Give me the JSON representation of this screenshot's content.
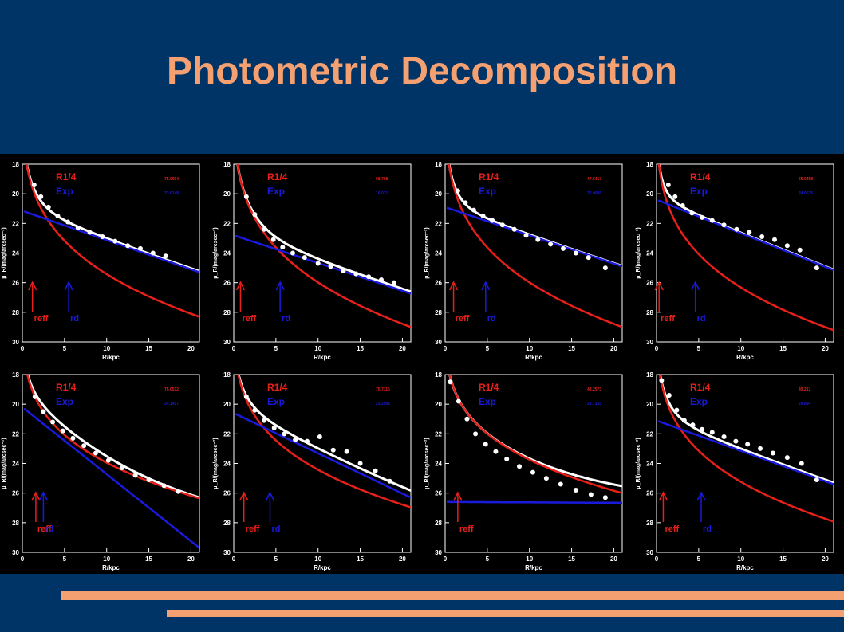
{
  "title": "Photometric Decomposition",
  "chart_data": [
    {
      "type": "line",
      "r_eff": 1.2,
      "r_d": 5.5,
      "bulge": {
        "mu_e": 19.6,
        "r_e": 1.2
      },
      "disk": {
        "mu_0": 21.15,
        "h": 5.5
      },
      "value_bulge": "75.0094",
      "value_disk": "23.0148",
      "data_points": [
        [
          1.4,
          19.4
        ],
        [
          2.2,
          20.2
        ],
        [
          3.1,
          20.9
        ],
        [
          4.2,
          21.5
        ],
        [
          5.4,
          21.9
        ],
        [
          6.6,
          22.3
        ],
        [
          8,
          22.6
        ],
        [
          9.5,
          22.9
        ],
        [
          11,
          23.2
        ],
        [
          12.5,
          23.5
        ],
        [
          14,
          23.7
        ],
        [
          15.5,
          24.0
        ],
        [
          17,
          24.2
        ]
      ]
    },
    {
      "type": "line",
      "r_eff": 0.8,
      "r_d": 5.5,
      "bulge": {
        "mu_e": 19.5,
        "r_e": 1.0
      },
      "disk": {
        "mu_0": 22.8,
        "h": 5.8
      },
      "value_bulge": "68.708",
      "value_disk": "16.031",
      "data_points": [
        [
          1.5,
          20.2
        ],
        [
          2.5,
          21.4
        ],
        [
          3.6,
          22.4
        ],
        [
          4.7,
          23.1
        ],
        [
          5.8,
          23.6
        ],
        [
          7,
          24.0
        ],
        [
          8.4,
          24.3
        ],
        [
          10,
          24.7
        ],
        [
          11.5,
          24.9
        ],
        [
          13,
          25.2
        ],
        [
          14.5,
          25.4
        ],
        [
          16,
          25.6
        ],
        [
          17.5,
          25.8
        ],
        [
          19,
          26.0
        ]
      ]
    },
    {
      "type": "line",
      "r_eff": 1.0,
      "r_d": 4.8,
      "bulge": {
        "mu_e": 19.5,
        "r_e": 1.0
      },
      "disk": {
        "mu_0": 20.9,
        "h": 5.7
      },
      "value_bulge": "47.5417",
      "value_disk": "22.0085",
      "data_points": [
        [
          1.5,
          19.8
        ],
        [
          2.4,
          20.6
        ],
        [
          3.4,
          21.1
        ],
        [
          4.5,
          21.5
        ],
        [
          5.6,
          21.8
        ],
        [
          6.8,
          22.1
        ],
        [
          8.2,
          22.4
        ],
        [
          9.6,
          22.8
        ],
        [
          11,
          23.1
        ],
        [
          12.5,
          23.4
        ],
        [
          14,
          23.7
        ],
        [
          15.5,
          24.0
        ],
        [
          17,
          24.3
        ],
        [
          19,
          25.0
        ]
      ]
    },
    {
      "type": "line",
      "r_eff": 0.3,
      "r_d": 4.6,
      "bulge": {
        "mu_e": 20.5,
        "r_e": 1.2
      },
      "disk": {
        "mu_0": 20.4,
        "h": 4.8
      },
      "value_bulge": "65.0458",
      "value_disk": "24.0535",
      "data_points": [
        [
          1.4,
          19.4
        ],
        [
          2.2,
          20.2
        ],
        [
          3.1,
          20.8
        ],
        [
          4.2,
          21.3
        ],
        [
          5.4,
          21.6
        ],
        [
          6.6,
          21.8
        ],
        [
          8,
          22.1
        ],
        [
          9.5,
          22.4
        ],
        [
          11,
          22.6
        ],
        [
          12.5,
          22.9
        ],
        [
          14,
          23.1
        ],
        [
          15.5,
          23.5
        ],
        [
          17,
          23.8
        ],
        [
          19,
          25.0
        ]
      ]
    },
    {
      "type": "line",
      "r_eff": 1.6,
      "r_d": 2.5,
      "bulge": {
        "mu_e": 20.5,
        "r_e": 2.5
      },
      "disk": {
        "mu_0": 20.2,
        "h": 2.4
      },
      "value_bulge": "75.0512",
      "value_disk": "24.1457",
      "data_points": [
        [
          1.5,
          19.5
        ],
        [
          2.5,
          20.5
        ],
        [
          3.6,
          21.2
        ],
        [
          4.8,
          21.8
        ],
        [
          6,
          22.3
        ],
        [
          7.3,
          22.8
        ],
        [
          8.7,
          23.3
        ],
        [
          10.2,
          23.8
        ],
        [
          11.8,
          24.3
        ],
        [
          13.4,
          24.8
        ],
        [
          15,
          25.1
        ],
        [
          16.8,
          25.5
        ],
        [
          18.5,
          25.9
        ]
      ]
    },
    {
      "type": "line",
      "r_eff": 1.2,
      "r_d": 4.3,
      "bulge": {
        "mu_e": 20.3,
        "r_e": 2.0
      },
      "disk": {
        "mu_0": 20.6,
        "h": 4.0
      },
      "value_bulge": "75.7115",
      "value_disk": "23.2995",
      "data_points": [
        [
          1.5,
          19.5
        ],
        [
          2.5,
          20.4
        ],
        [
          3.6,
          21.1
        ],
        [
          4.8,
          21.6
        ],
        [
          6,
          22.0
        ],
        [
          7.3,
          22.4
        ],
        [
          8.7,
          22.5
        ],
        [
          10.2,
          22.2
        ],
        [
          11.8,
          23.1
        ],
        [
          13.4,
          23.2
        ],
        [
          15,
          24.0
        ],
        [
          16.8,
          24.5
        ],
        [
          18.5,
          25.2
        ]
      ]
    },
    {
      "type": "line",
      "r_eff": 1.5,
      "r_d": null,
      "bulge": {
        "mu_e": 21.0,
        "r_e": 3.2
      },
      "disk": {
        "mu_0": 26.6,
        "h": 400
      },
      "value_bulge": "48.2573",
      "value_disk": "23.7155",
      "data_points": [
        [
          0.6,
          18.5
        ],
        [
          1.6,
          19.8
        ],
        [
          2.6,
          21.0
        ],
        [
          3.6,
          22.0
        ],
        [
          4.8,
          22.7
        ],
        [
          6,
          23.2
        ],
        [
          7.3,
          23.7
        ],
        [
          8.8,
          24.2
        ],
        [
          10.4,
          24.6
        ],
        [
          12,
          25.0
        ],
        [
          13.7,
          25.4
        ],
        [
          15.5,
          25.8
        ],
        [
          17.3,
          26.1
        ],
        [
          19,
          26.3
        ]
      ]
    },
    {
      "type": "line",
      "r_eff": 0.8,
      "r_d": 5.3,
      "bulge": {
        "mu_e": 20.4,
        "r_e": 1.6
      },
      "disk": {
        "mu_0": 21.1,
        "h": 5.3
      },
      "value_bulge": "49.217",
      "value_disk": "24.894",
      "data_points": [
        [
          0.6,
          18.4
        ],
        [
          1.5,
          19.4
        ],
        [
          2.4,
          20.4
        ],
        [
          3.3,
          21.1
        ],
        [
          4.3,
          21.4
        ],
        [
          5.4,
          21.7
        ],
        [
          6.6,
          21.9
        ],
        [
          8,
          22.2
        ],
        [
          9.4,
          22.5
        ],
        [
          10.8,
          22.7
        ],
        [
          12.3,
          23.0
        ],
        [
          13.8,
          23.3
        ],
        [
          15.5,
          23.6
        ],
        [
          17.2,
          24.0
        ],
        [
          19,
          25.1
        ]
      ]
    }
  ],
  "axis": {
    "xlabel": "R/kpc",
    "ylabel": "μ_R/(mag/arcsec⁻²)",
    "xlim": [
      0,
      21
    ],
    "ylim": [
      30,
      18
    ],
    "xticks": [
      "0",
      "5",
      "10",
      "15",
      "20"
    ],
    "yticks": [
      "18",
      "20",
      "22",
      "24",
      "26",
      "28",
      "30"
    ]
  },
  "legend": {
    "bulge_label": "R1/4",
    "disk_label": "Exp"
  },
  "arrows": {
    "r_eff_label": "reff",
    "r_d_label": "rd"
  },
  "colors": {
    "bulge": "#e8201a",
    "disk": "#1a1adc",
    "data": "#ffffff",
    "background": "#003366",
    "accent": "#f5a070"
  }
}
